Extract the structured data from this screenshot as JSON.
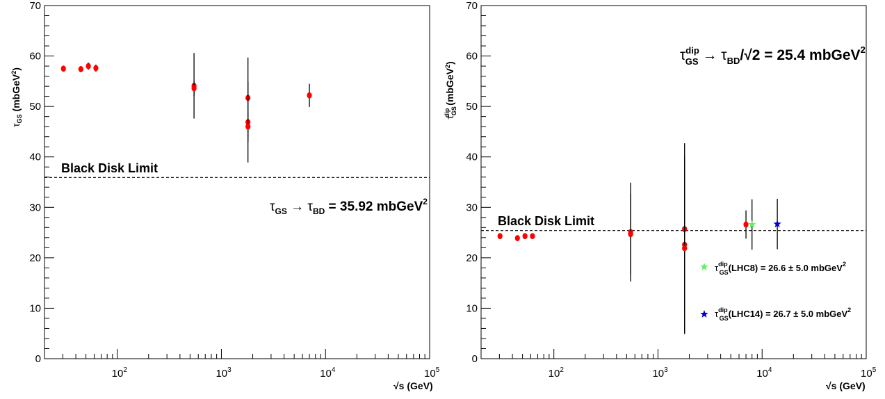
{
  "chart_data": [
    {
      "type": "scatter",
      "title": "",
      "xlabel": "√s (GeV)",
      "ylabel": "τGS (mbGeV²)",
      "xscale": "log",
      "xlim": [
        20,
        100000
      ],
      "ylim": [
        0,
        70
      ],
      "yticks": [
        "0",
        "10",
        "20",
        "30",
        "40",
        "50",
        "60",
        "70"
      ],
      "xticks": [
        {
          "base": "10",
          "exp": "2"
        },
        {
          "base": "10",
          "exp": "3"
        },
        {
          "base": "10",
          "exp": "4"
        },
        {
          "base": "10",
          "exp": "5"
        }
      ],
      "reference_line": {
        "y": 35.92,
        "label": "Black Disk Limit",
        "style": "dashed"
      },
      "annotation": {
        "tau": "τ",
        "sub_gs": "GS",
        "arrow": "→",
        "sub_bd": "BD",
        "value": " = 35.92 mbGeV",
        "sup": "2"
      },
      "series": [
        {
          "color": "#ff0000",
          "marker": "circle",
          "points": [
            {
              "x": 30.4,
              "y": 57.5,
              "err": 0.6
            },
            {
              "x": 44.7,
              "y": 57.4,
              "err": 0.6
            },
            {
              "x": 52.8,
              "y": 58.0,
              "err": 0.7
            },
            {
              "x": 62.3,
              "y": 57.6,
              "err": 0.7
            },
            {
              "x": 546,
              "y": 54.1,
              "err": 6.5
            },
            {
              "x": 546,
              "y": 53.6,
              "err": 1.5
            },
            {
              "x": 1800,
              "y": 51.7,
              "err": 8.0
            },
            {
              "x": 1800,
              "y": 46.9,
              "err": 8.0
            },
            {
              "x": 1800,
              "y": 46.0,
              "err": 3.0
            },
            {
              "x": 7000,
              "y": 52.2,
              "err": 2.3
            }
          ]
        }
      ]
    },
    {
      "type": "scatter",
      "title": "",
      "xlabel": "√s (GeV)",
      "ylabel": "τGS dip (mbGeV²)",
      "xscale": "log",
      "xlim": [
        20,
        100000
      ],
      "ylim": [
        0,
        70
      ],
      "yticks": [
        "0",
        "10",
        "20",
        "30",
        "40",
        "50",
        "60",
        "70"
      ],
      "xticks": [
        {
          "base": "10",
          "exp": "2"
        },
        {
          "base": "10",
          "exp": "3"
        },
        {
          "base": "10",
          "exp": "4"
        },
        {
          "base": "10",
          "exp": "5"
        }
      ],
      "reference_line": {
        "y": 25.4,
        "label": "Black Disk Limit",
        "style": "dashed"
      },
      "annotation": {
        "tau": "τ",
        "sub_gs": "GS",
        "sup_dip": "dip",
        "arrow": "→",
        "sub_bd": "BD",
        "div": "/√2",
        "value": " = 25.4 mbGeV",
        "sup": "2"
      },
      "series": [
        {
          "color": "#ff0000",
          "marker": "circle",
          "points": [
            {
              "x": 30.4,
              "y": 24.3,
              "err": 0.4
            },
            {
              "x": 44.7,
              "y": 23.9,
              "err": 0.4
            },
            {
              "x": 52.8,
              "y": 24.3,
              "err": 0.4
            },
            {
              "x": 62.3,
              "y": 24.3,
              "err": 0.4
            },
            {
              "x": 546,
              "y": 25.1,
              "err": 9.8
            },
            {
              "x": 546,
              "y": 24.7,
              "err": 8.0
            },
            {
              "x": 1800,
              "y": 25.7,
              "err": 17.0
            },
            {
              "x": 1800,
              "y": 22.6,
              "err": 17.5
            },
            {
              "x": 1800,
              "y": 21.9,
              "err": 17.0
            },
            {
              "x": 7000,
              "y": 26.6,
              "err": 2.8
            }
          ]
        },
        {
          "color": "#66ee66",
          "marker": "star",
          "points": [
            {
              "x": 8000,
              "y": 26.6,
              "err": 5.0
            }
          ]
        },
        {
          "color": "#0000cc",
          "marker": "star",
          "points": [
            {
              "x": 14000,
              "y": 26.7,
              "err": 5.0
            }
          ]
        }
      ],
      "legend": [
        {
          "color": "#66ee66",
          "tau": "τ",
          "sub": "GS",
          "sup": "dip",
          "text": "(LHC8) = 26.6 ± 5.0 mbGeV",
          "unit_sup": "2"
        },
        {
          "color": "#0000cc",
          "tau": "τ",
          "sub": "GS",
          "sup": "dip",
          "text": "(LHC14) = 26.7 ± 5.0 mbGeV",
          "unit_sup": "2"
        }
      ]
    }
  ]
}
